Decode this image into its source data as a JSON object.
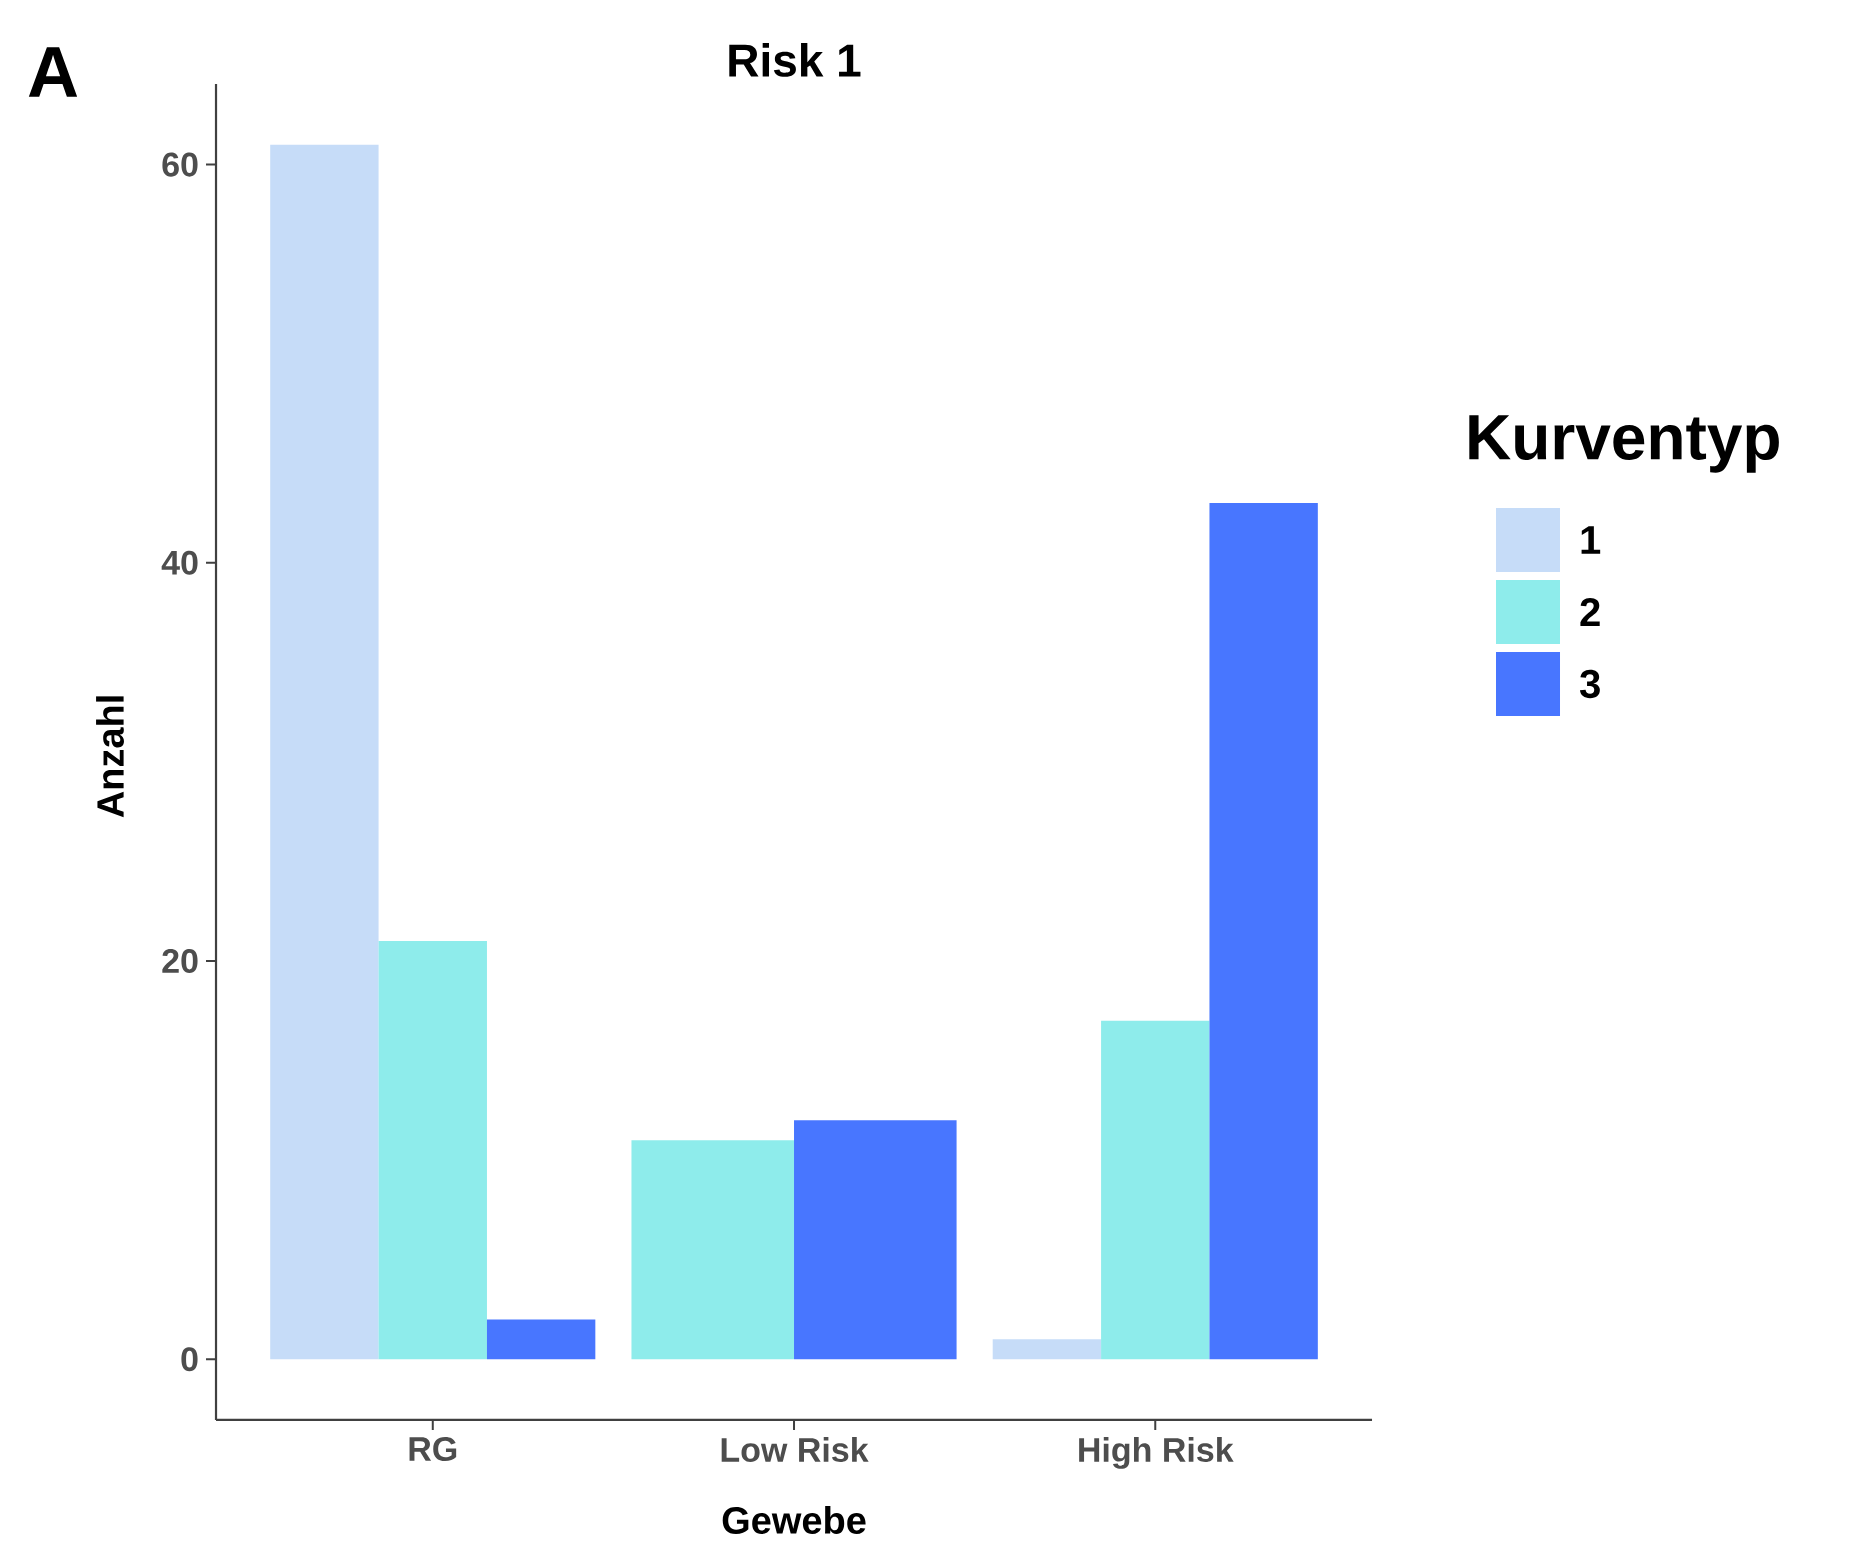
{
  "chart_data": {
    "type": "bar",
    "title": "Risk 1",
    "xlabel": "Gewebe",
    "ylabel": "Anzahl",
    "legend_title": "Kurventyp",
    "annotations": [
      "A"
    ],
    "categories": [
      "RG",
      "Low Risk",
      "High Risk"
    ],
    "series": [
      {
        "name": "1",
        "color": "#c6dcf8",
        "values": [
          61,
          null,
          1
        ]
      },
      {
        "name": "2",
        "color": "#8eeceb",
        "values": [
          21,
          11,
          17
        ]
      },
      {
        "name": "3",
        "color": "#4876ff",
        "values": [
          2,
          12,
          43
        ]
      }
    ],
    "ylim": [
      -3.05,
      64.05
    ],
    "yticks": [
      0,
      20,
      40,
      60
    ],
    "grid": false,
    "legend": "right"
  }
}
